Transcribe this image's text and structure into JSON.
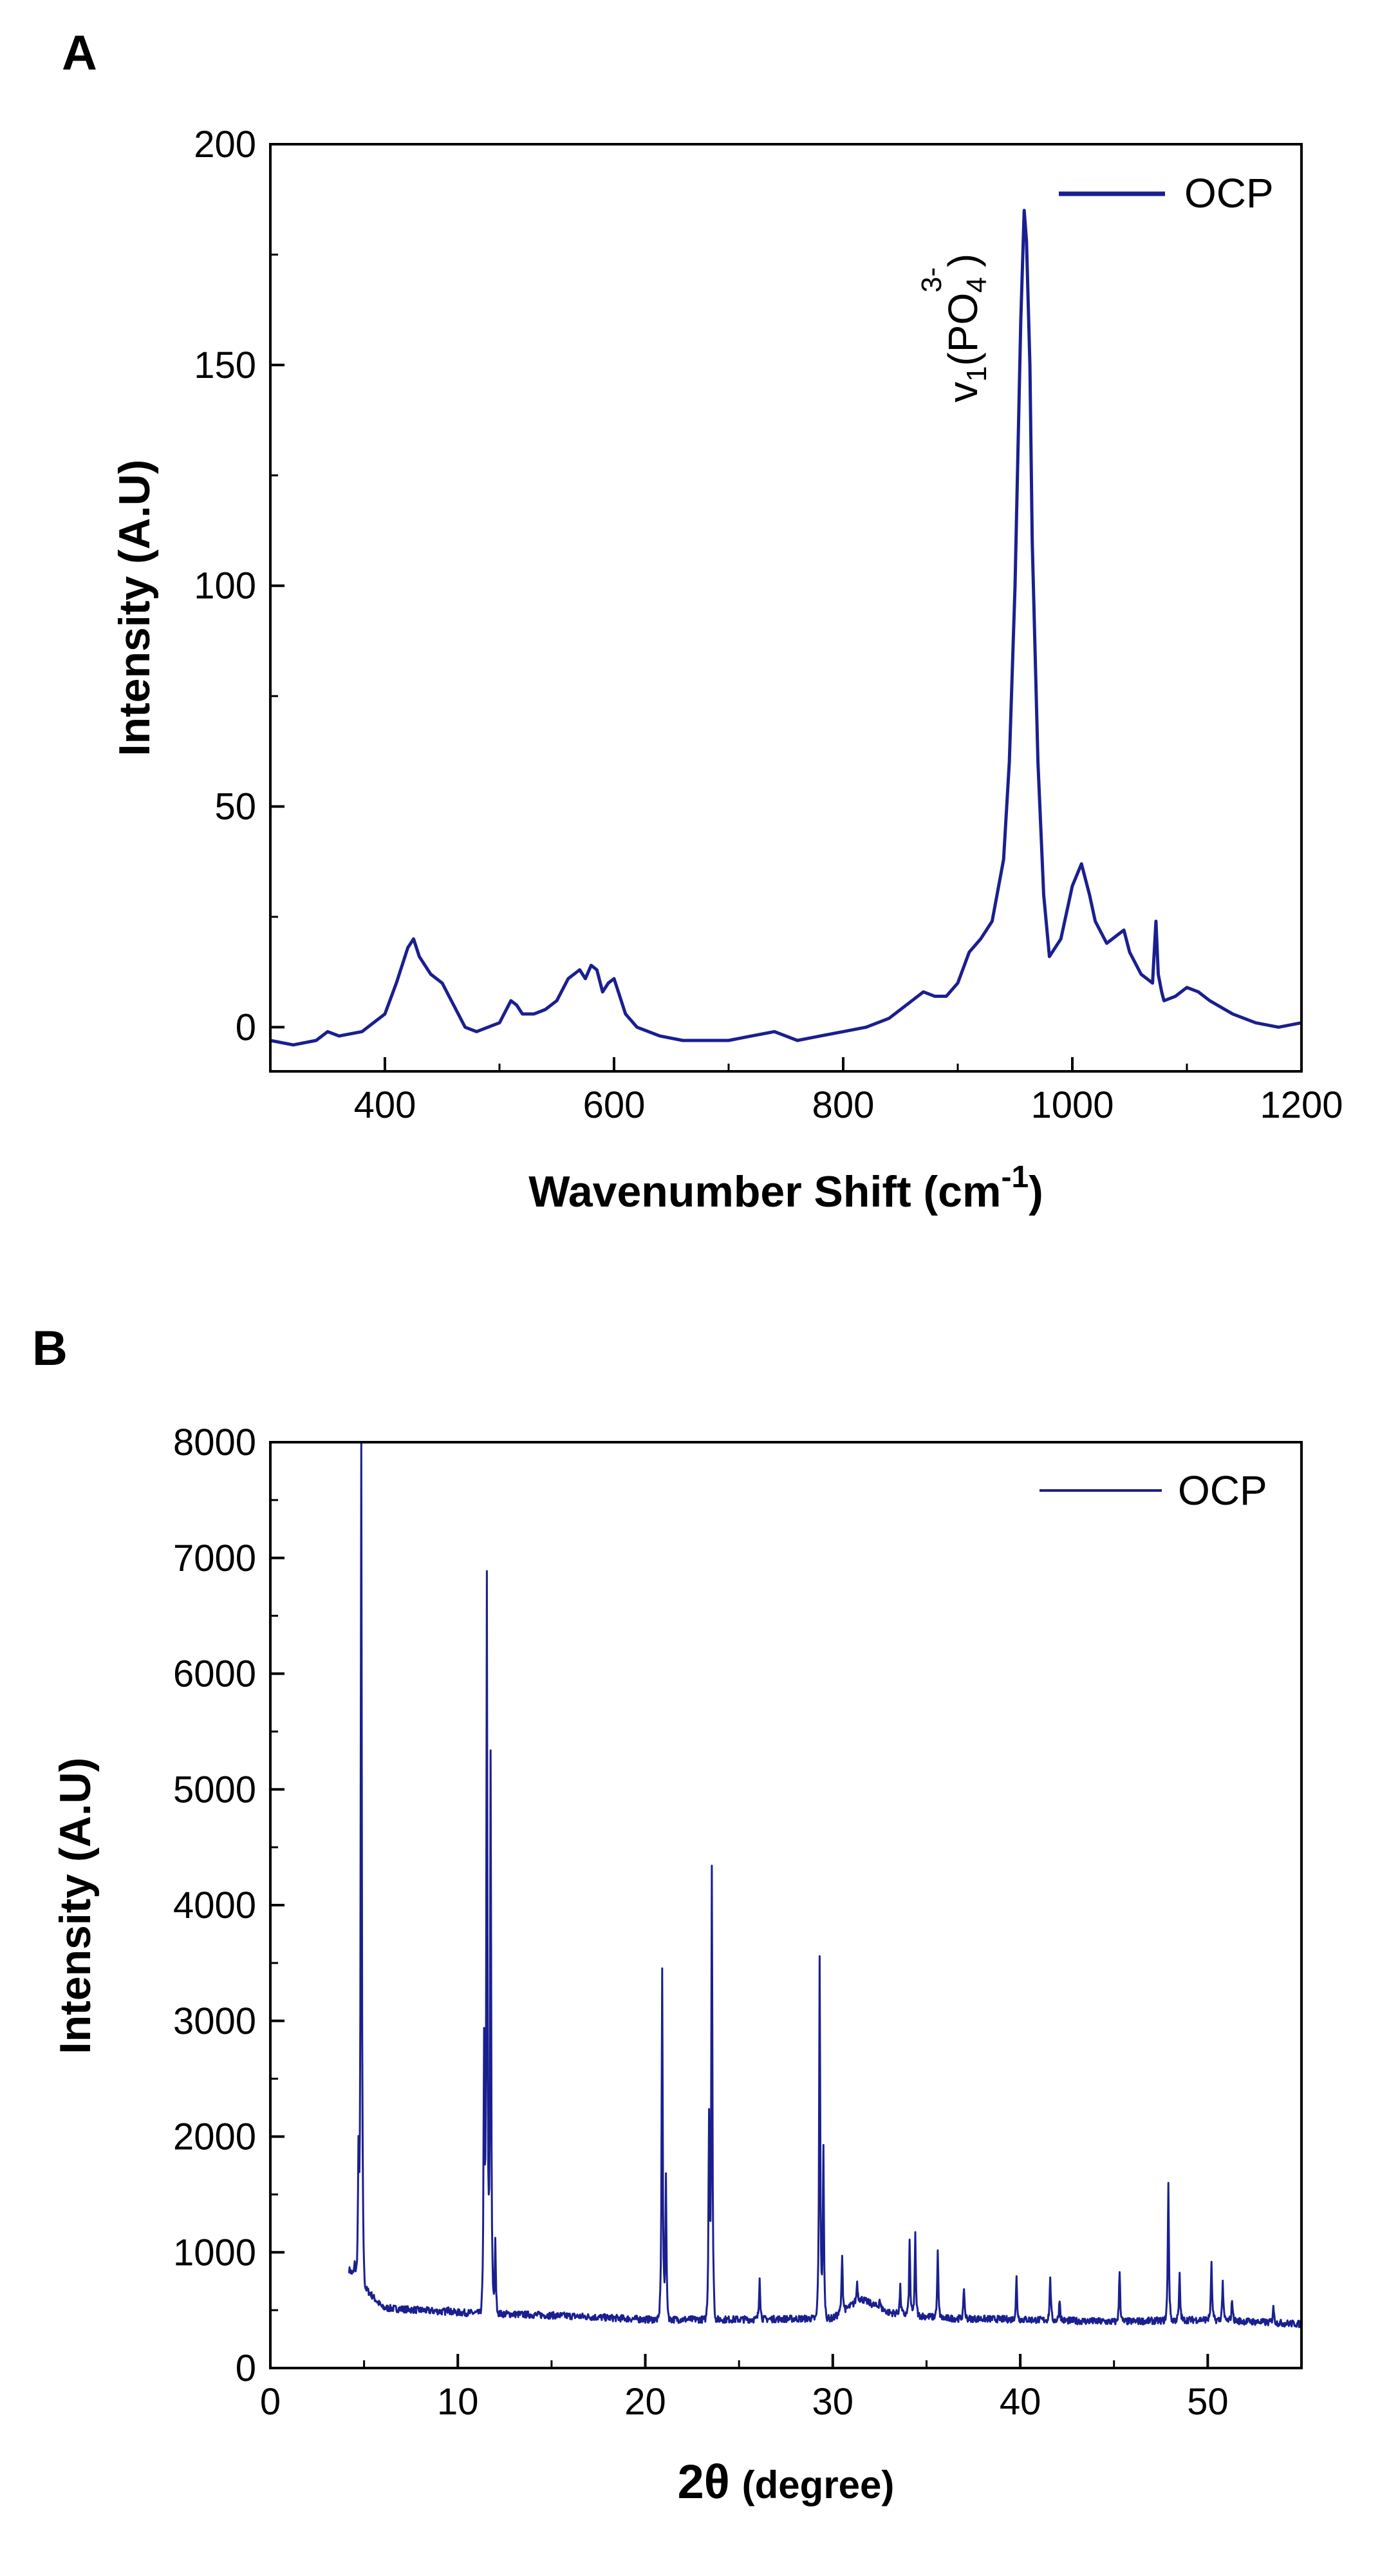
{
  "chart_data": [
    {
      "id": "A",
      "panel_label": "A",
      "type": "line",
      "title": "",
      "xlabel": "Wavenumber Shift",
      "xlabel_unit_base": "cm",
      "xlabel_unit_exp": "-1",
      "ylabel": "Intensity (A.U)",
      "xlim": [
        300,
        1200
      ],
      "ylim": [
        -10,
        200
      ],
      "xticks": [
        400,
        600,
        800,
        1000,
        1200
      ],
      "yticks": [
        0,
        50,
        100,
        150,
        200
      ],
      "grid": false,
      "legend_position": "top-right",
      "series": [
        {
          "name": "OCP",
          "color": "#1a1f8f",
          "x": [
            300,
            320,
            340,
            350,
            360,
            380,
            400,
            410,
            420,
            425,
            430,
            440,
            450,
            460,
            470,
            480,
            490,
            500,
            510,
            515,
            520,
            530,
            540,
            550,
            560,
            570,
            575,
            580,
            585,
            590,
            595,
            600,
            605,
            610,
            620,
            640,
            660,
            680,
            700,
            720,
            740,
            760,
            780,
            800,
            820,
            840,
            860,
            870,
            880,
            890,
            900,
            910,
            920,
            930,
            940,
            945,
            950,
            955,
            958,
            960,
            963,
            965,
            970,
            975,
            980,
            990,
            1000,
            1008,
            1015,
            1020,
            1030,
            1040,
            1045,
            1050,
            1060,
            1070,
            1073,
            1075,
            1078,
            1080,
            1090,
            1100,
            1110,
            1120,
            1140,
            1160,
            1180,
            1200
          ],
          "y": [
            -3,
            -4,
            -3,
            -1,
            -2,
            -1,
            3,
            10,
            18,
            20,
            16,
            12,
            10,
            5,
            0,
            -1,
            0,
            1,
            6,
            5,
            3,
            3,
            4,
            6,
            11,
            13,
            11,
            14,
            13,
            8,
            10,
            11,
            7,
            3,
            0,
            -2,
            -3,
            -3,
            -3,
            -2,
            -1,
            -3,
            -2,
            -1,
            0,
            2,
            6,
            8,
            7,
            7,
            10,
            17,
            20,
            24,
            38,
            60,
            100,
            160,
            185,
            178,
            150,
            110,
            60,
            30,
            16,
            20,
            32,
            37,
            30,
            24,
            19,
            21,
            22,
            17,
            12,
            10,
            24,
            12,
            8,
            6,
            7,
            9,
            8,
            6,
            3,
            1,
            0,
            1
          ]
        }
      ],
      "annotation": {
        "text_main": "v",
        "text_sub1": "1",
        "text_mid": "(PO",
        "text_sub2": "4",
        "text_sup": "3-",
        "text_end": ")",
        "at_x": 930,
        "at_y": 180
      }
    },
    {
      "id": "B",
      "panel_label": "B",
      "type": "line",
      "title": "",
      "xlabel": "2θ",
      "xlabel_paren": "(degree)",
      "ylabel": "Intensity (A.U)",
      "xlim": [
        0,
        55
      ],
      "ylim": [
        0,
        8000
      ],
      "xticks": [
        0,
        10,
        20,
        30,
        40,
        50
      ],
      "yticks": [
        0,
        1000,
        2000,
        3000,
        4000,
        5000,
        6000,
        7000,
        8000
      ],
      "grid": false,
      "legend_position": "top-right",
      "series": [
        {
          "name": "OCP",
          "color": "#1a1f8f",
          "baseline": [
            [
              4.2,
              850
            ],
            [
              6,
              520
            ],
            [
              10,
              480
            ],
            [
              16,
              450
            ],
            [
              20,
              420
            ],
            [
              25,
              420
            ],
            [
              30,
              430
            ],
            [
              31.5,
              600
            ],
            [
              33,
              480
            ],
            [
              36,
              430
            ],
            [
              40,
              420
            ],
            [
              45,
              400
            ],
            [
              50,
              420
            ],
            [
              55,
              380
            ]
          ],
          "peaks": [
            [
              4.5,
              900
            ],
            [
              4.7,
              1800
            ],
            [
              4.85,
              8000
            ],
            [
              9.5,
              550
            ],
            [
              11.4,
              2800
            ],
            [
              11.55,
              6800
            ],
            [
              11.75,
              5300
            ],
            [
              12.0,
              1100
            ],
            [
              20.9,
              3450
            ],
            [
              21.1,
              1650
            ],
            [
              23.4,
              2150
            ],
            [
              23.55,
              4280
            ],
            [
              26.1,
              800
            ],
            [
              29.3,
              3570
            ],
            [
              29.5,
              1900
            ],
            [
              30.5,
              1000
            ],
            [
              31.3,
              750
            ],
            [
              32.5,
              600
            ],
            [
              33.6,
              700
            ],
            [
              34.1,
              1100
            ],
            [
              34.4,
              1150
            ],
            [
              35.6,
              1000
            ],
            [
              37.0,
              700
            ],
            [
              39.8,
              780
            ],
            [
              41.6,
              800
            ],
            [
              42.1,
              600
            ],
            [
              45.3,
              850
            ],
            [
              47.9,
              1620
            ],
            [
              48.5,
              800
            ],
            [
              50.2,
              920
            ],
            [
              50.8,
              750
            ],
            [
              51.3,
              600
            ],
            [
              53.5,
              550
            ]
          ]
        }
      ]
    }
  ]
}
